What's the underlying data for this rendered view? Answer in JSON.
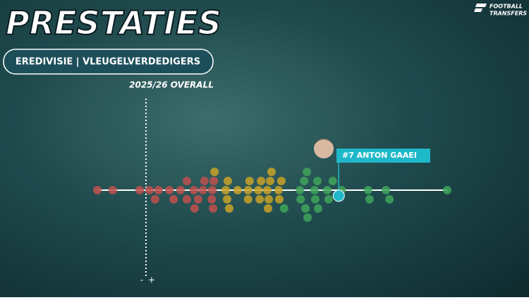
{
  "header": {
    "title": "PRESTATIES",
    "subtitle": "EREDIVISIE | VLEUGELVERDEDIGERS",
    "season": "2025/26 OVERALL",
    "logo": [
      "FOOTBALL",
      "TRANSFERS"
    ]
  },
  "chart_data": {
    "type": "beeswarm",
    "xlim": [
      0,
      100
    ],
    "reference_x": 13.9,
    "reference_labels": [
      "-",
      "+"
    ],
    "series": [
      {
        "color": "#c0504d",
        "values": [
          0,
          4.4,
          12.1,
          14.9,
          16.5,
          17.5,
          20.6,
          21.8,
          23.8,
          25.6,
          25.6,
          27.6,
          27.8,
          28.8,
          30.2,
          30.6,
          32.7,
          32.9,
          33.1,
          33.3
        ]
      },
      {
        "color": "#c9a227",
        "values": [
          33.5,
          36.7,
          37.1,
          37.3,
          37.7,
          40.1,
          43.1,
          43.1,
          43.5,
          46.0,
          46.4,
          46.8,
          48.6,
          48.8,
          49.0,
          49.4,
          49.8,
          51.8,
          52.0,
          52.6
        ]
      },
      {
        "color": "#3fa45b",
        "values": [
          53.4,
          57.9,
          58.1,
          59.1,
          59.5,
          59.9,
          60.1,
          62.1,
          62.3,
          62.9,
          63.1,
          65.7,
          66.1,
          67.3,
          69.8,
          77.4,
          77.8,
          82.5,
          83.5,
          100
        ]
      }
    ],
    "highlight": {
      "label": "#7 ANTON GAAEI",
      "x": 69.0,
      "color": "#1eb8c8"
    }
  }
}
